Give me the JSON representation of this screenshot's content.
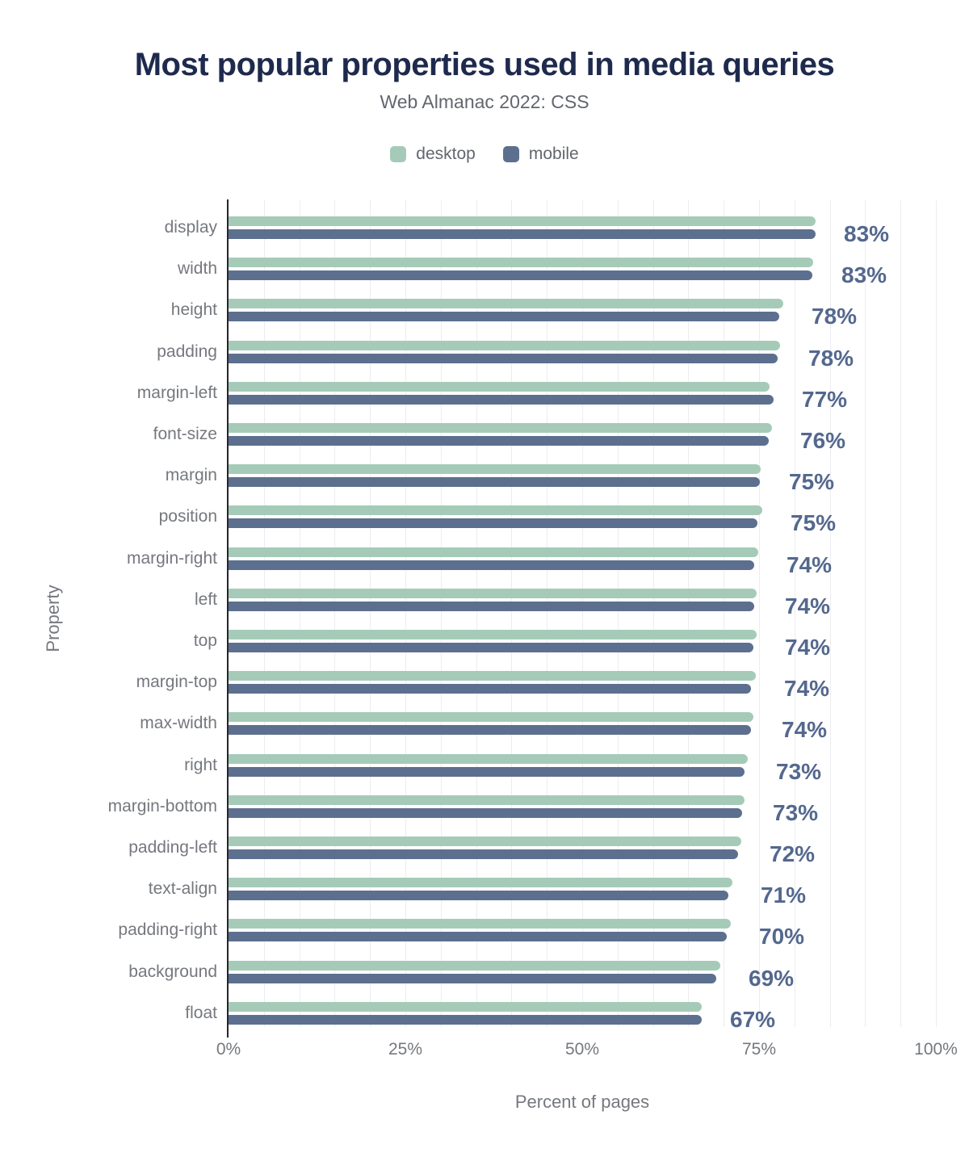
{
  "title": "Most popular properties used in media queries",
  "subtitle": "Web Almanac 2022: CSS",
  "legend": [
    {
      "label": "desktop",
      "series": "desktop"
    },
    {
      "label": "mobile",
      "series": "mobile"
    }
  ],
  "axes": {
    "xlabel": "Percent of pages",
    "ylabel": "Property"
  },
  "colors": {
    "desktop": "#a5cbb8",
    "mobile": "#5d6f8e",
    "title": "#1e2a4d",
    "subtitle": "#63666e",
    "axis_text": "#75787e",
    "value_label": "#54688e",
    "gridline": "#ededf1",
    "axis_line": "#26262e",
    "background": "#ffffff"
  },
  "chart_data": {
    "type": "bar",
    "orientation": "horizontal",
    "title": "Most popular properties used in media queries",
    "subtitle": "Web Almanac 2022: CSS",
    "xlabel": "Percent of pages",
    "ylabel": "Property",
    "xlim": [
      0,
      100
    ],
    "x_ticks": [
      "0%",
      "25%",
      "50%",
      "75%",
      "100%"
    ],
    "x_tick_values": [
      0,
      25,
      50,
      75,
      100
    ],
    "grid": "vertical, every 5%",
    "legend_position": "top",
    "categories": [
      "display",
      "width",
      "height",
      "padding",
      "margin-left",
      "font-size",
      "margin",
      "position",
      "margin-right",
      "left",
      "top",
      "margin-top",
      "max-width",
      "right",
      "margin-bottom",
      "padding-left",
      "text-align",
      "padding-right",
      "background",
      "float"
    ],
    "series": [
      {
        "name": "desktop",
        "values": [
          83.0,
          82.6,
          78.4,
          78.0,
          76.5,
          76.8,
          75.2,
          75.5,
          74.9,
          74.7,
          74.7,
          74.5,
          74.2,
          73.4,
          73.0,
          72.5,
          71.2,
          71.0,
          69.5,
          66.9
        ]
      },
      {
        "name": "mobile",
        "values": [
          83.0,
          82.5,
          77.8,
          77.6,
          77.0,
          76.4,
          75.1,
          74.8,
          74.3,
          74.3,
          74.2,
          73.9,
          73.9,
          72.9,
          72.6,
          72.0,
          70.7,
          70.4,
          69.0,
          66.9
        ]
      }
    ],
    "value_labels": [
      "83%",
      "83%",
      "78%",
      "78%",
      "77%",
      "76%",
      "75%",
      "75%",
      "74%",
      "74%",
      "74%",
      "74%",
      "74%",
      "73%",
      "73%",
      "72%",
      "71%",
      "70%",
      "69%",
      "67%"
    ]
  }
}
